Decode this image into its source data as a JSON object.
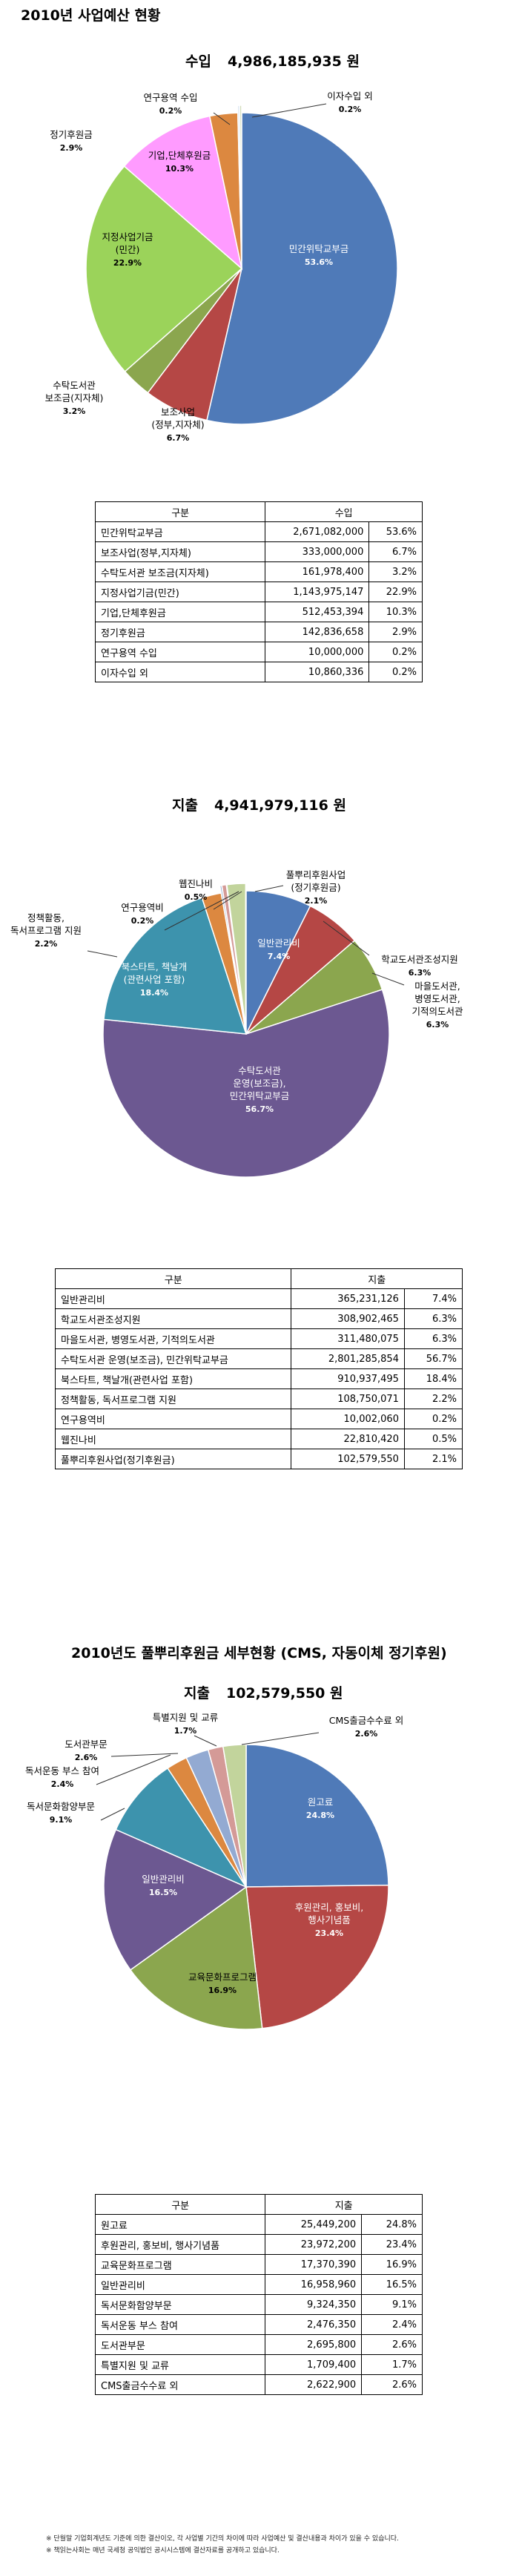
{
  "page_title": "2010년 사업예산 현황",
  "sections": [
    {
      "id": "income",
      "title": "수입",
      "amount": "4,986,185,935 원",
      "table_header": [
        "구분",
        "수입"
      ],
      "rows": [
        {
          "label": "민간위탁교부금",
          "value": "2,671,082,000",
          "pct": "53.6%"
        },
        {
          "label": "보조사업(정부,지자체)",
          "value": "333,000,000",
          "pct": "6.7%"
        },
        {
          "label": "수탁도서관 보조금(지자체)",
          "value": "161,978,400",
          "pct": "3.2%"
        },
        {
          "label": "지정사업기금(민간)",
          "value": "1,143,975,147",
          "pct": "22.9%"
        },
        {
          "label": "기업,단체후원금",
          "value": "512,453,394",
          "pct": "10.3%"
        },
        {
          "label": "정기후원금",
          "value": "142,836,658",
          "pct": "2.9%"
        },
        {
          "label": "연구용역 수입",
          "value": "10,000,000",
          "pct": "0.2%"
        },
        {
          "label": "이자수입 외",
          "value": "10,860,336",
          "pct": "0.2%"
        }
      ]
    },
    {
      "id": "expense",
      "title": "지출",
      "amount": "4,941,979,116 원",
      "table_header": [
        "구분",
        "지출"
      ],
      "rows": [
        {
          "label": "일반관리비",
          "value": "365,231,126",
          "pct": "7.4%"
        },
        {
          "label": "학교도서관조성지원",
          "value": "308,902,465",
          "pct": "6.3%"
        },
        {
          "label": "마을도서관, 병영도서관, 기적의도서관",
          "value": "311,480,075",
          "pct": "6.3%"
        },
        {
          "label": "수탁도서관 운영(보조금), 민간위탁교부금",
          "value": "2,801,285,854",
          "pct": "56.7%"
        },
        {
          "label": "북스타트, 책날개(관련사업 포함)",
          "value": "910,937,495",
          "pct": "18.4%"
        },
        {
          "label": "정책활동, 독서프로그램 지원",
          "value": "108,750,071",
          "pct": "2.2%"
        },
        {
          "label": "연구용역비",
          "value": "10,002,060",
          "pct": "0.2%"
        },
        {
          "label": "웹진나비",
          "value": "22,810,420",
          "pct": "0.5%"
        },
        {
          "label": "풀뿌리후원사업(정기후원금)",
          "value": "102,579,550",
          "pct": "2.1%"
        }
      ]
    },
    {
      "id": "cms",
      "heading": "2010년도 풀뿌리후원금 세부현황 (CMS, 자동이체 정기후원)",
      "title": "지출",
      "amount": "102,579,550 원",
      "table_header": [
        "구분",
        "지출"
      ],
      "rows": [
        {
          "label": "원고료",
          "value": "25,449,200",
          "pct": "24.8%"
        },
        {
          "label": "후원관리, 홍보비, 행사기념품",
          "value": "23,972,200",
          "pct": "23.4%"
        },
        {
          "label": "교육문화프로그램",
          "value": "17,370,390",
          "pct": "16.9%"
        },
        {
          "label": "일반관리비",
          "value": "16,958,960",
          "pct": "16.5%"
        },
        {
          "label": "독서문화함양부문",
          "value": "9,324,350",
          "pct": "9.1%"
        },
        {
          "label": "독서운동 부스 참여",
          "value": "2,476,350",
          "pct": "2.4%"
        },
        {
          "label": "도서관부문",
          "value": "2,695,800",
          "pct": "2.6%"
        },
        {
          "label": "특별지원 및 교류",
          "value": "1,709,400",
          "pct": "1.7%"
        },
        {
          "label": "CMS출금수수료 외",
          "value": "2,622,900",
          "pct": "2.6%"
        }
      ]
    }
  ],
  "chart_data": [
    {
      "type": "pie",
      "title": "수입",
      "categories": [
        "민간위탁교부금",
        "보조사업(정부,지자체)",
        "수탁도서관 보조금(지자체)",
        "지정사업기금(민간)",
        "기업,단체후원금",
        "정기후원금",
        "연구용역 수입",
        "이자수입 외"
      ],
      "values": [
        53.6,
        6.7,
        3.2,
        22.9,
        10.3,
        2.9,
        0.2,
        0.2
      ],
      "colors": [
        "#4f7ab8",
        "#b54745",
        "#8ba64e",
        "#9bd35a",
        "#ff9bff",
        "#dc8840",
        "#d4e2ef",
        "#ccd8b0"
      ],
      "labels": [
        {
          "lines": [
            "민간위탁교부금",
            "53.6%"
          ]
        },
        {
          "lines": [
            "보조사업",
            "(정부,지자체)",
            "6.7%"
          ]
        },
        {
          "lines": [
            "수탁도서관",
            "보조금(지자체)",
            "3.2%"
          ]
        },
        {
          "lines": [
            "지정사업기금",
            "(민간)",
            "22.9%"
          ]
        },
        {
          "lines": [
            "기업,단체후원금",
            "10.3%"
          ]
        },
        {
          "lines": [
            "정기후원금",
            "2.9%"
          ]
        },
        {
          "lines": [
            "연구용역 수입",
            "0.2%"
          ]
        },
        {
          "lines": [
            "이자수입 외",
            "0.2%"
          ]
        }
      ]
    },
    {
      "type": "pie",
      "title": "지출",
      "categories": [
        "일반관리비",
        "학교도서관조성지원",
        "마을도서관, 병영도서관, 기적의도서관",
        "수탁도서관 운영(보조금), 민간위탁교부금",
        "북스타트, 책날개(관련사업 포함)",
        "정책활동, 독서프로그램 지원",
        "연구용역비",
        "웹진나비",
        "풀뿌리후원사업(정기후원금)"
      ],
      "values": [
        7.4,
        6.3,
        6.3,
        56.7,
        18.4,
        2.2,
        0.2,
        0.5,
        2.1
      ],
      "colors": [
        "#4f7ab8",
        "#b54745",
        "#8ba64e",
        "#6c5891",
        "#3d93ad",
        "#dc8840",
        "#93aad2",
        "#d49a97",
        "#c2d49c"
      ],
      "labels": [
        {
          "lines": [
            "일반관리비",
            "7.4%"
          ]
        },
        {
          "lines": [
            "학교도서관조성지원",
            "6.3%"
          ]
        },
        {
          "lines": [
            "마을도서관,",
            "병영도서관,",
            "기적의도서관",
            "6.3%"
          ]
        },
        {
          "lines": [
            "수탁도서관",
            "운영(보조금),",
            "민간위탁교부금",
            "56.7%"
          ]
        },
        {
          "lines": [
            "북스타트, 책날개",
            "(관련사업 포함)",
            "18.4%"
          ]
        },
        {
          "lines": [
            "정책활동,",
            "독서프로그램 지원",
            "2.2%"
          ]
        },
        {
          "lines": [
            "연구용역비",
            "0.2%"
          ]
        },
        {
          "lines": [
            "웹진나비",
            "0.5%"
          ]
        },
        {
          "lines": [
            "풀뿌리후원사업",
            "(정기후원금)",
            "2.1%"
          ]
        }
      ]
    },
    {
      "type": "pie",
      "title": "지출",
      "categories": [
        "원고료",
        "후원관리, 홍보비, 행사기념품",
        "교육문화프로그램",
        "일반관리비",
        "독서문화함양부문",
        "독서운동 부스 참여",
        "도서관부문",
        "특별지원 및 교류",
        "CMS출금수수료 외"
      ],
      "values": [
        24.8,
        23.4,
        16.9,
        16.5,
        9.1,
        2.4,
        2.6,
        1.7,
        2.6
      ],
      "colors": [
        "#4f7ab8",
        "#b54745",
        "#8ba64e",
        "#6c5891",
        "#3d93ad",
        "#dc8840",
        "#93aad2",
        "#d49a97",
        "#c2d49c"
      ],
      "labels": [
        {
          "lines": [
            "원고료",
            "24.8%"
          ]
        },
        {
          "lines": [
            "후원관리, 홍보비,",
            "행사기념품",
            "23.4%"
          ]
        },
        {
          "lines": [
            "교육문화프로그램",
            "16.9%"
          ]
        },
        {
          "lines": [
            "일반관리비",
            "16.5%"
          ]
        },
        {
          "lines": [
            "독서문화함양부문",
            "9.1%"
          ]
        },
        {
          "lines": [
            "독서운동 부스 참여",
            "2.4%"
          ]
        },
        {
          "lines": [
            "도서관부문",
            "2.6%"
          ]
        },
        {
          "lines": [
            "특별지원 및 교류",
            "1.7%"
          ]
        },
        {
          "lines": [
            "CMS출금수수료 외",
            "2.6%"
          ]
        }
      ]
    }
  ],
  "footnotes": [
    "※ 단월말 기업회계년도 기준에 의한 결산이오, 각 사업별 기간의 차이에 따라 사업예산 및 결산내용과 차이가 있을 수 있습니다.",
    "※ 책읽는사회는 매년 국세청 공익법인 공시시스템에 결산자료를 공개하고 있습니다."
  ]
}
